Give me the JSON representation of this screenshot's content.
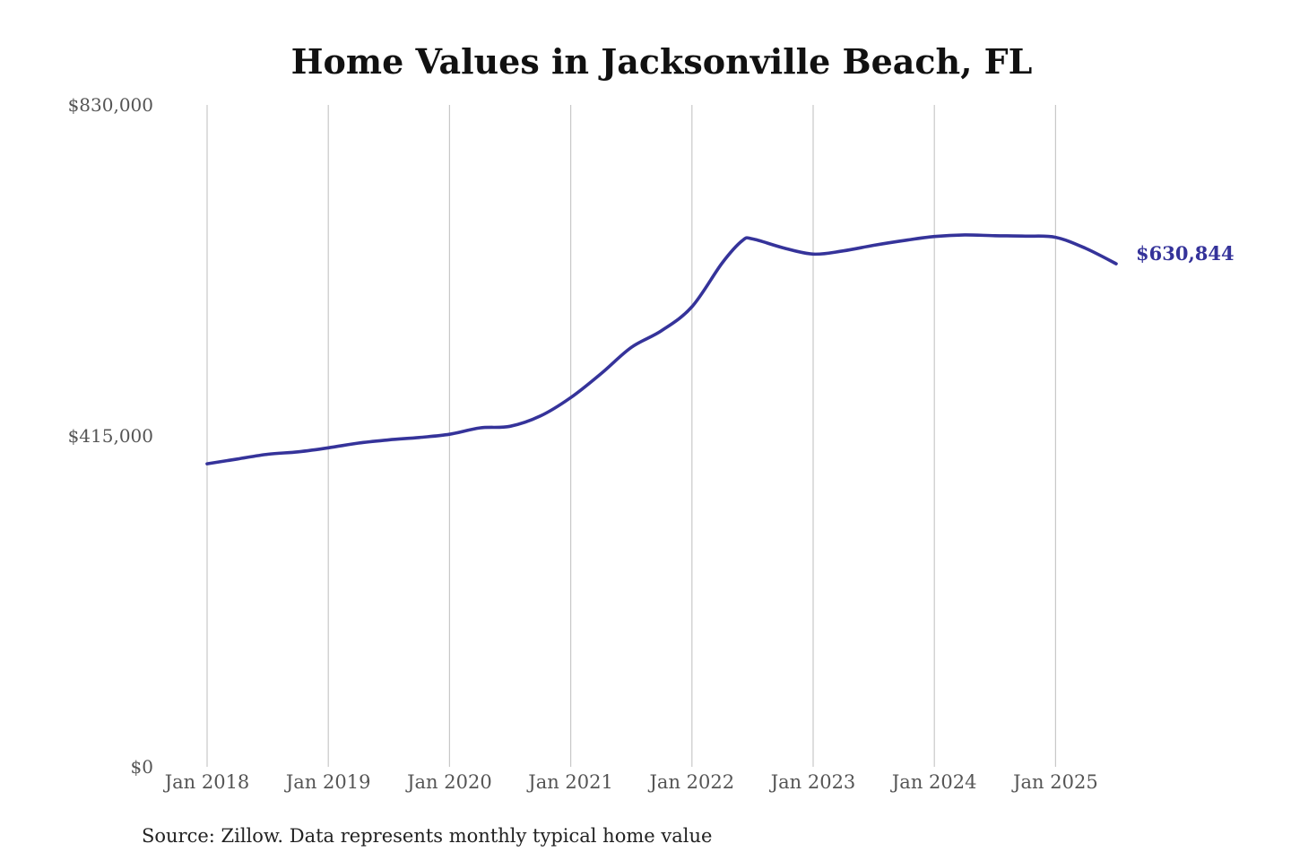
{
  "colors": {
    "series": "#35339a",
    "grid": "#c8c8c8",
    "title": "#111111",
    "tick_text": "#555555"
  },
  "source_note": "Source: Zillow. Data represents monthly typical home value",
  "chart_data": {
    "type": "line",
    "title": "Home Values in Jacksonville Beach, FL",
    "xlabel": "",
    "ylabel": "",
    "ylim": [
      0,
      830000
    ],
    "y_ticks": [
      {
        "value": 830000,
        "label": "$830,000"
      },
      {
        "value": 415000,
        "label": "$415,000"
      },
      {
        "value": 0,
        "label": "$0"
      }
    ],
    "x_range": [
      "2018-01",
      "2025-07"
    ],
    "x_ticks": [
      {
        "date": "2018-01",
        "label": "Jan 2018"
      },
      {
        "date": "2019-01",
        "label": "Jan 2019"
      },
      {
        "date": "2020-01",
        "label": "Jan 2020"
      },
      {
        "date": "2021-01",
        "label": "Jan 2021"
      },
      {
        "date": "2022-01",
        "label": "Jan 2022"
      },
      {
        "date": "2023-01",
        "label": "Jan 2023"
      },
      {
        "date": "2024-01",
        "label": "Jan 2024"
      },
      {
        "date": "2025-01",
        "label": "Jan 2025"
      }
    ],
    "grid": "vertical",
    "legend": "none",
    "end_label": "$630,844",
    "series": [
      {
        "name": "",
        "color": "#35339a",
        "points": [
          {
            "x": "2018-01",
            "y": 380000
          },
          {
            "x": "2018-04",
            "y": 386000
          },
          {
            "x": "2018-07",
            "y": 392000
          },
          {
            "x": "2018-10",
            "y": 395000
          },
          {
            "x": "2019-01",
            "y": 400000
          },
          {
            "x": "2019-04",
            "y": 406000
          },
          {
            "x": "2019-07",
            "y": 410000
          },
          {
            "x": "2019-10",
            "y": 413000
          },
          {
            "x": "2020-01",
            "y": 417000
          },
          {
            "x": "2020-04",
            "y": 425000
          },
          {
            "x": "2020-07",
            "y": 427000
          },
          {
            "x": "2020-10",
            "y": 440000
          },
          {
            "x": "2021-01",
            "y": 463000
          },
          {
            "x": "2021-04",
            "y": 493000
          },
          {
            "x": "2021-07",
            "y": 526000
          },
          {
            "x": "2021-10",
            "y": 547000
          },
          {
            "x": "2022-01",
            "y": 577000
          },
          {
            "x": "2022-04",
            "y": 632000
          },
          {
            "x": "2022-06",
            "y": 660000
          },
          {
            "x": "2022-07",
            "y": 662000
          },
          {
            "x": "2022-10",
            "y": 651000
          },
          {
            "x": "2023-01",
            "y": 643000
          },
          {
            "x": "2023-04",
            "y": 647000
          },
          {
            "x": "2023-07",
            "y": 654000
          },
          {
            "x": "2023-10",
            "y": 660000
          },
          {
            "x": "2024-01",
            "y": 665000
          },
          {
            "x": "2024-04",
            "y": 667000
          },
          {
            "x": "2024-07",
            "y": 666000
          },
          {
            "x": "2024-10",
            "y": 665500
          },
          {
            "x": "2025-01",
            "y": 664000
          },
          {
            "x": "2025-04",
            "y": 650000
          },
          {
            "x": "2025-07",
            "y": 630844
          }
        ]
      }
    ]
  }
}
